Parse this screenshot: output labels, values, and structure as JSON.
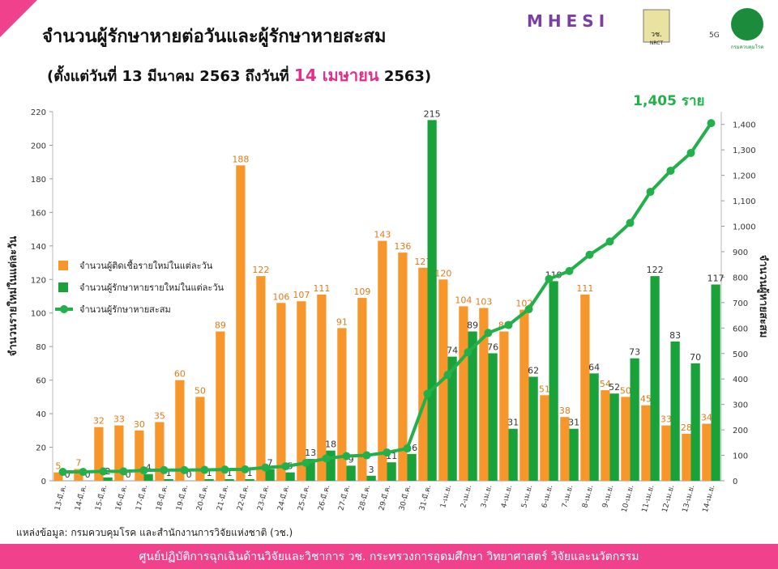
{
  "header": {
    "title": "จำนวนผู้รักษาหายต่อวันและผู้รักษาหายสะสม",
    "subtitle": [
      "(ตั้งแต่วันที่ 13 มีนาคม 2563 ถึงวันที่",
      "14 เมษายน",
      "2563)"
    ],
    "logos": [
      "MHESI",
      "วช.",
      "NRCT",
      "5G",
      "กรมควบคุมโรค"
    ]
  },
  "chart_data": {
    "type": "combo",
    "y_label": "จำนวนรายใหม่ในแต่ละวัน",
    "y2_label": "จำนวนผู้หายสะสม",
    "annotation": "1,405 ราย",
    "categories": [
      "13-มี.ค.",
      "14-มี.ค.",
      "15-มี.ค.",
      "16-มี.ค.",
      "17-มี.ค.",
      "18-มี.ค.",
      "19-มี.ค.",
      "20-มี.ค.",
      "21-มี.ค.",
      "22-มี.ค.",
      "23-มี.ค.",
      "24-มี.ค.",
      "25-มี.ค.",
      "26-มี.ค.",
      "27-มี.ค.",
      "28-มี.ค.",
      "29-มี.ค.",
      "30-มี.ค.",
      "31-มี.ค.",
      "1-เม.ย.",
      "2-เม.ย.",
      "3-เม.ย.",
      "4-เม.ย.",
      "5-เม.ย.",
      "6-เม.ย.",
      "7-เม.ย.",
      "8-เม.ย.",
      "9-เม.ย.",
      "10-เม.ย.",
      "11-เม.ย.",
      "12-เม.ย.",
      "13-เม.ย.",
      "14-เม.ย."
    ],
    "series": [
      {
        "name": "จำนวนผู้ติดเชื้อรายใหม่ในแต่ละวัน",
        "type": "bar",
        "color": "#f7962a",
        "label_color": "#e07b1a",
        "values": [
          5,
          7,
          32,
          33,
          30,
          35,
          60,
          50,
          89,
          188,
          122,
          106,
          107,
          111,
          91,
          109,
          143,
          136,
          127,
          120,
          104,
          103,
          89,
          102,
          51,
          38,
          111,
          54,
          50,
          45,
          33,
          28,
          34
        ]
      },
      {
        "name": "จำนวนผู้รักษาหายรายใหม่ในแต่ละวัน",
        "type": "bar",
        "color": "#1aa23a",
        "label_color": "#333333",
        "values": [
          0,
          0,
          2,
          0,
          4,
          1,
          0,
          1,
          1,
          1,
          7,
          5,
          13,
          18,
          9,
          3,
          11,
          16,
          215,
          74,
          89,
          76,
          31,
          62,
          119,
          31,
          64,
          52,
          73,
          122,
          83,
          70,
          117
        ]
      },
      {
        "name": "จำนวนผู้รักษาหายสะสม",
        "type": "line",
        "axis": "y2",
        "color": "#22b04a",
        "values": [
          35,
          35,
          37,
          37,
          41,
          42,
          42,
          43,
          44,
          45,
          52,
          57,
          70,
          88,
          97,
          100,
          111,
          127,
          342,
          416,
          505,
          581,
          612,
          674,
          793,
          824,
          888,
          940,
          1013,
          1135,
          1218,
          1288,
          1405
        ]
      }
    ],
    "ylim": [
      0,
      220
    ],
    "yticks": [
      0,
      20,
      40,
      60,
      80,
      100,
      120,
      140,
      160,
      180,
      200,
      220
    ],
    "y2lim": [
      0,
      1450
    ],
    "y2ticks": [
      0,
      100,
      200,
      300,
      400,
      500,
      600,
      700,
      800,
      900,
      {
        "value": 1000,
        "label": "1,000"
      },
      {
        "value": 1100,
        "label": "1,100"
      },
      {
        "value": 1200,
        "label": "1,200"
      },
      {
        "value": 1300,
        "label": "1,300"
      },
      {
        "value": 1400,
        "label": "1,400"
      }
    ],
    "legend": "center-left",
    "grid": false
  },
  "source": "แหล่งข้อมูล: กรมควบคุมโรค และสำนักงานการวิจัยแห่งชาติ (วช.)",
  "footer": "ศูนย์ปฏิบัติการฉุกเฉินด้านวิจัยและวิชาการ   วช.   กระทรวงการอุดมศึกษา วิทยาศาสตร์ วิจัยและนวัตกรรม"
}
